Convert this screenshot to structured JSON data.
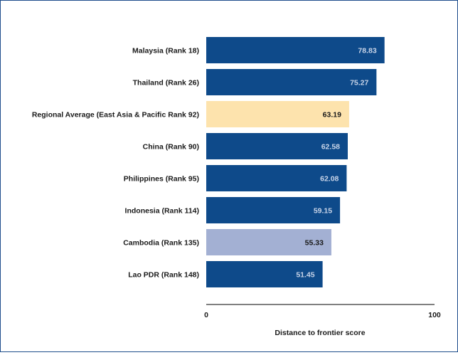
{
  "chart_data": {
    "type": "bar",
    "orientation": "horizontal",
    "title": "",
    "xlabel": "Distance to frontier score",
    "ylabel": "",
    "xlim": [
      0,
      100
    ],
    "x_ticks": [
      "0",
      "100"
    ],
    "grid": false,
    "legend": "none",
    "categories": [
      "Malaysia (Rank 18)",
      "Thailand (Rank 26)",
      "Regional Average (East Asia & Pacific Rank 92)",
      "China (Rank 90)",
      "Philippines (Rank 95)",
      "Indonesia (Rank 114)",
      "Cambodia (Rank 135)",
      "Lao PDR (Rank 148)"
    ],
    "values": [
      78.83,
      75.27,
      63.19,
      62.58,
      62.08,
      59.15,
      55.33,
      51.45
    ],
    "value_labels": [
      "78.83",
      "75.27",
      "63.19",
      "62.58",
      "62.08",
      "59.15",
      "55.33",
      "51.45"
    ],
    "bar_colors": [
      "#0e4a8a",
      "#0e4a8a",
      "#fde3ad",
      "#0e4a8a",
      "#0e4a8a",
      "#0e4a8a",
      "#a3b0d3",
      "#0e4a8a"
    ],
    "label_colors": [
      "#c8d4e8",
      "#c8d4e8",
      "#1a1a1a",
      "#c8d4e8",
      "#c8d4e8",
      "#c8d4e8",
      "#1a1a1a",
      "#c8d4e8"
    ]
  }
}
